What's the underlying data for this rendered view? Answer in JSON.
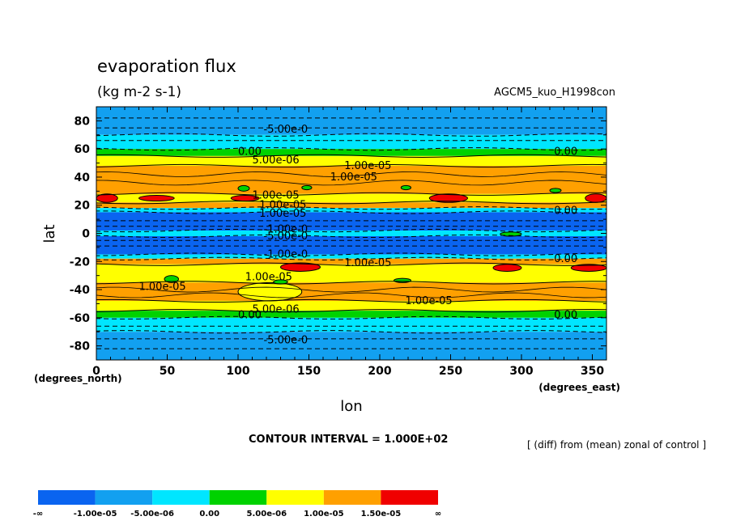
{
  "chart_data": {
    "type": "heatmap",
    "title": "evaporation flux",
    "subtitle": "(kg m-2 s-1)",
    "experiment": "AGCM5_kuo_H1998con",
    "xlabel": "lon",
    "ylabel": "lat",
    "x_unit": "(degrees_east)",
    "y_unit": "(degrees_north)",
    "xlim": [
      0,
      360
    ],
    "ylim": [
      -90,
      90
    ],
    "x_ticks": [
      0,
      50,
      100,
      150,
      200,
      250,
      300,
      350
    ],
    "y_ticks": [
      80,
      60,
      40,
      20,
      0,
      -20,
      -40,
      -60,
      -80
    ],
    "contour_interval": "CONTOUR INTERVAL = 1.000E+02",
    "note": "[ (diff) from (mean) zonal of control ]",
    "colorbar": {
      "colors": [
        "#0a64f0",
        "#12a0f0",
        "#00e6ff",
        "#00d200",
        "#ffff00",
        "#ffa000",
        "#f00000"
      ],
      "labels": [
        "-∞",
        "-1.00e-05",
        "-5.00e-06",
        "0.00",
        "5.00e-06",
        "1.00e-05",
        "1.50e-05",
        "∞"
      ]
    },
    "zonal_bands": [
      {
        "lat_from": 90,
        "lat_to": 70,
        "color_index": 1
      },
      {
        "lat_from": 70,
        "lat_to": 60,
        "color_index": 2
      },
      {
        "lat_from": 60,
        "lat_to": 55,
        "color_index": 3
      },
      {
        "lat_from": 55,
        "lat_to": 48,
        "color_index": 4
      },
      {
        "lat_from": 48,
        "lat_to": 28,
        "color_index": 5
      },
      {
        "lat_from": 28,
        "lat_to": 22,
        "color_index": 4
      },
      {
        "lat_from": 22,
        "lat_to": 18,
        "color_index": 5
      },
      {
        "lat_from": 18,
        "lat_to": 15,
        "color_index": 2
      },
      {
        "lat_from": 15,
        "lat_to": 2,
        "color_index": 0
      },
      {
        "lat_from": 2,
        "lat_to": -2,
        "color_index": 2
      },
      {
        "lat_from": -2,
        "lat_to": -15,
        "color_index": 0
      },
      {
        "lat_from": -15,
        "lat_to": -18,
        "color_index": 2
      },
      {
        "lat_from": -18,
        "lat_to": -22,
        "color_index": 5
      },
      {
        "lat_from": -22,
        "lat_to": -35,
        "color_index": 4
      },
      {
        "lat_from": -35,
        "lat_to": -48,
        "color_index": 5
      },
      {
        "lat_from": -48,
        "lat_to": -55,
        "color_index": 4
      },
      {
        "lat_from": -55,
        "lat_to": -60,
        "color_index": 3
      },
      {
        "lat_from": -60,
        "lat_to": -70,
        "color_index": 2
      },
      {
        "lat_from": -70,
        "lat_to": -90,
        "color_index": 1
      }
    ],
    "patches": [
      {
        "lon": [
          0,
          15
        ],
        "lat": [
          28,
          22
        ],
        "color_index": 6
      },
      {
        "lon": [
          30,
          55
        ],
        "lat": [
          27,
          23
        ],
        "color_index": 6
      },
      {
        "lon": [
          95,
          115
        ],
        "lat": [
          27,
          23
        ],
        "color_index": 6
      },
      {
        "lon": [
          235,
          262
        ],
        "lat": [
          28,
          22
        ],
        "color_index": 6
      },
      {
        "lon": [
          345,
          360
        ],
        "lat": [
          28,
          22
        ],
        "color_index": 6
      },
      {
        "lon": [
          130,
          158
        ],
        "lat": [
          -21,
          -27
        ],
        "color_index": 6
      },
      {
        "lon": [
          280,
          300
        ],
        "lat": [
          -22,
          -27
        ],
        "color_index": 6
      },
      {
        "lon": [
          335,
          360
        ],
        "lat": [
          -22,
          -27
        ],
        "color_index": 6
      },
      {
        "lon": [
          100,
          145
        ],
        "lat": [
          -35,
          -48
        ],
        "color_index": 4
      },
      {
        "lon": [
          285,
          300
        ],
        "lat": [
          1,
          -2
        ],
        "color_index": 3
      },
      {
        "lon": [
          100,
          108
        ],
        "lat": [
          34,
          30
        ],
        "color_index": 3
      },
      {
        "lon": [
          145,
          152
        ],
        "lat": [
          34,
          31
        ],
        "color_index": 3
      },
      {
        "lon": [
          215,
          222
        ],
        "lat": [
          34,
          31
        ],
        "color_index": 3
      },
      {
        "lon": [
          320,
          328
        ],
        "lat": [
          32,
          29
        ],
        "color_index": 3
      },
      {
        "lon": [
          48,
          58
        ],
        "lat": [
          -30,
          -35
        ],
        "color_index": 3
      },
      {
        "lon": [
          210,
          222
        ],
        "lat": [
          -32,
          -35
        ],
        "color_index": 3
      },
      {
        "lon": [
          125,
          135
        ],
        "lat": [
          -33,
          -36
        ],
        "color_index": 3
      }
    ],
    "contour_labels": [
      {
        "text": "-5.00e-0",
        "lon": 118,
        "lat": 74
      },
      {
        "text": "0.00",
        "lon": 100,
        "lat": 58
      },
      {
        "text": "5.00e-06",
        "lon": 110,
        "lat": 52
      },
      {
        "text": "1.00e-05",
        "lon": 175,
        "lat": 48
      },
      {
        "text": "1.00e-05",
        "lon": 165,
        "lat": 40
      },
      {
        "text": "0.00",
        "lon": 323,
        "lat": 58
      },
      {
        "text": "1.00e-05",
        "lon": 110,
        "lat": 27
      },
      {
        "text": "1.00e-05",
        "lon": 115,
        "lat": 20
      },
      {
        "text": "1.00e-05",
        "lon": 115,
        "lat": 14
      },
      {
        "text": "0.00",
        "lon": 323,
        "lat": 16
      },
      {
        "text": "-1.00e-0",
        "lon": 118,
        "lat": 3
      },
      {
        "text": "-5.00e-0",
        "lon": 118,
        "lat": -2
      },
      {
        "text": "-1.00e-0",
        "lon": 118,
        "lat": -15
      },
      {
        "text": "0.00",
        "lon": 323,
        "lat": -18
      },
      {
        "text": "1.00e-05",
        "lon": 175,
        "lat": -21
      },
      {
        "text": "1.00e-05",
        "lon": 105,
        "lat": -31
      },
      {
        "text": "1.00e-05",
        "lon": 30,
        "lat": -38
      },
      {
        "text": "1.00e-05",
        "lon": 218,
        "lat": -48
      },
      {
        "text": "5.00e-06",
        "lon": 110,
        "lat": -54
      },
      {
        "text": "0.00",
        "lon": 100,
        "lat": -58
      },
      {
        "text": "0.00",
        "lon": 323,
        "lat": -58
      },
      {
        "text": "-5.00e-0",
        "lon": 118,
        "lat": -76
      }
    ]
  }
}
